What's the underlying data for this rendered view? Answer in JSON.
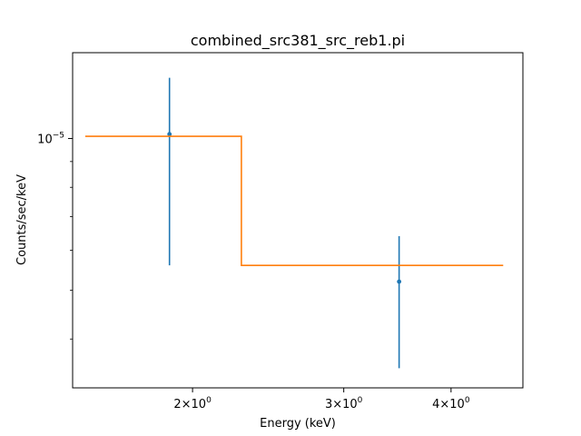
{
  "chart_data": {
    "type": "line",
    "title": "combined_src381_src_reb1.pi",
    "xlabel": "Energy (keV)",
    "ylabel": "Counts/sec/keV",
    "xscale": "log",
    "yscale": "log",
    "xlim": [
      1.45,
      4.85
    ],
    "ylim": [
      3.2e-06,
      1.48e-05
    ],
    "grid": false,
    "x_ticks": [
      {
        "value": 2,
        "base": "2×10",
        "exp": "0"
      },
      {
        "value": 3,
        "base": "3×10",
        "exp": "0"
      },
      {
        "value": 4,
        "base": "4×10",
        "exp": "0"
      }
    ],
    "y_ticks": [
      {
        "value": 1e-05,
        "base": "10",
        "exp": "−5"
      }
    ],
    "series": [
      {
        "kind": "errorbar",
        "color": "#1f77b4",
        "points": [
          {
            "x": 1.88,
            "y": 1.02e-05,
            "ylow": 5.6e-06,
            "yhigh": 1.32e-05
          },
          {
            "x": 3.48,
            "y": 5.2e-06,
            "ylow": 3.5e-06,
            "yhigh": 6.4e-06
          }
        ]
      },
      {
        "kind": "step",
        "color": "#ff7f0e",
        "segments": [
          {
            "x0": 1.5,
            "x1": 2.28,
            "y": 1.01e-05
          },
          {
            "x0": 2.28,
            "x1": 4.6,
            "y": 5.6e-06
          }
        ]
      }
    ]
  }
}
